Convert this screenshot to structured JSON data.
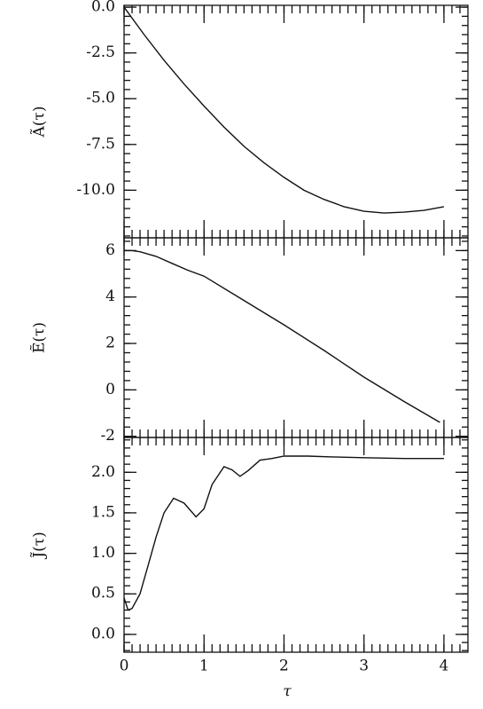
{
  "chart_data": [
    {
      "type": "line",
      "ylabel": "Ã(τ)",
      "x": [
        0,
        0.25,
        0.5,
        0.75,
        1,
        1.25,
        1.5,
        1.75,
        2,
        2.25,
        2.5,
        2.75,
        3,
        3.25,
        3.5,
        3.75,
        4
      ],
      "values": [
        0,
        -1.5,
        -2.9,
        -4.2,
        -5.4,
        -6.55,
        -7.6,
        -8.5,
        -9.3,
        -10.0,
        -10.5,
        -10.9,
        -11.15,
        -11.25,
        -11.2,
        -11.1,
        -10.9
      ],
      "xlim": [
        0,
        4.3
      ],
      "xticks": [
        0,
        1,
        2,
        3,
        4
      ],
      "ylim": [
        -12.6,
        0.1
      ],
      "yticks": [
        {
          "value": 0,
          "label": "0.0"
        },
        {
          "value": -2.5,
          "label": "-2.5"
        },
        {
          "value": -5,
          "label": "-5.0"
        },
        {
          "value": -7.5,
          "label": "-7.5"
        },
        {
          "value": -10,
          "label": "-10.0"
        }
      ],
      "color": "#111"
    },
    {
      "type": "line",
      "ylabel": "Ẽ(τ)",
      "x": [
        0,
        0.1,
        0.2,
        0.4,
        0.6,
        0.8,
        1,
        1.5,
        2,
        2.5,
        3,
        3.5,
        3.95
      ],
      "values": [
        6,
        6,
        5.95,
        5.75,
        5.45,
        5.15,
        4.9,
        3.85,
        2.8,
        1.7,
        0.55,
        -0.5,
        -1.4
      ],
      "xlim": [
        0,
        4.3
      ],
      "xticks": [
        0,
        1,
        2,
        3,
        4
      ],
      "ylim": [
        -2.05,
        6.55
      ],
      "yticks": [
        6,
        4,
        2,
        0,
        -2
      ],
      "color": "#111"
    },
    {
      "type": "line",
      "ylabel": "J̃(τ)",
      "xlabel": "τ",
      "x": [
        0,
        0.05,
        0.1,
        0.2,
        0.3,
        0.4,
        0.5,
        0.62,
        0.75,
        0.9,
        1.0,
        1.1,
        1.25,
        1.35,
        1.45,
        1.55,
        1.7,
        1.85,
        2.0,
        2.3,
        2.6,
        3.0,
        3.5,
        4.0
      ],
      "values": [
        0.45,
        0.3,
        0.32,
        0.5,
        0.85,
        1.2,
        1.5,
        1.68,
        1.62,
        1.45,
        1.55,
        1.85,
        2.07,
        2.03,
        1.95,
        2.02,
        2.15,
        2.17,
        2.2,
        2.2,
        2.19,
        2.18,
        2.17,
        2.17
      ],
      "xlim": [
        0,
        4.3
      ],
      "xticks": [
        0,
        1,
        2,
        3,
        4
      ],
      "ylim": [
        -0.22,
        2.43
      ],
      "yticks": [
        {
          "value": 2,
          "label": "2.0"
        },
        {
          "value": 1.5,
          "label": "1.5"
        },
        {
          "value": 1,
          "label": "1.0"
        },
        {
          "value": 0.5,
          "label": "0.5"
        },
        {
          "value": 0,
          "label": "0.0"
        }
      ],
      "color": "#111"
    }
  ]
}
